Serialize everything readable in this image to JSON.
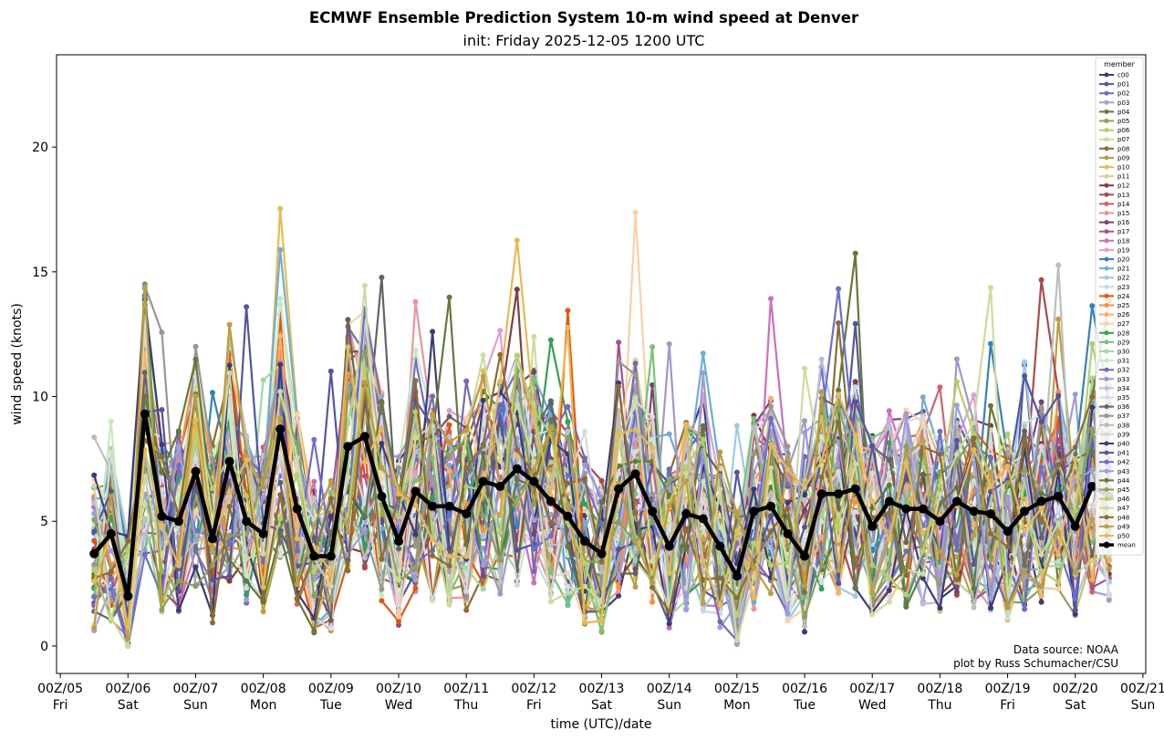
{
  "chart_data": {
    "type": "line",
    "title": "ECMWF Ensemble Prediction System 10-m wind speed at Denver",
    "subtitle": "init: Friday 2025-12-05 1200 UTC",
    "xlabel": "time (UTC)/date",
    "ylabel": "wind speed (knots)",
    "ylim": [
      -1.1,
      23.7
    ],
    "yticks": [
      0,
      5,
      10,
      15,
      20
    ],
    "xticks": [
      {
        "line1": "00Z/05",
        "line2": "Fri"
      },
      {
        "line1": "00Z/06",
        "line2": "Sat"
      },
      {
        "line1": "00Z/07",
        "line2": "Sun"
      },
      {
        "line1": "00Z/08",
        "line2": "Mon"
      },
      {
        "line1": "00Z/09",
        "line2": "Tue"
      },
      {
        "line1": "00Z/10",
        "line2": "Wed"
      },
      {
        "line1": "00Z/11",
        "line2": "Thu"
      },
      {
        "line1": "00Z/12",
        "line2": "Fri"
      },
      {
        "line1": "00Z/13",
        "line2": "Sat"
      },
      {
        "line1": "00Z/14",
        "line2": "Sun"
      },
      {
        "line1": "00Z/15",
        "line2": "Mon"
      },
      {
        "line1": "00Z/16",
        "line2": "Tue"
      },
      {
        "line1": "00Z/17",
        "line2": "Wed"
      },
      {
        "line1": "00Z/18",
        "line2": "Thu"
      },
      {
        "line1": "00Z/19",
        "line2": "Fri"
      },
      {
        "line1": "00Z/20",
        "line2": "Sat"
      },
      {
        "line1": "00Z/21",
        "line2": "Sun"
      }
    ],
    "x": [
      "2025-12-05 12Z",
      "2025-12-05 18Z",
      "2025-12-06 00Z",
      "2025-12-06 06Z",
      "2025-12-06 12Z",
      "2025-12-06 18Z",
      "2025-12-07 00Z",
      "2025-12-07 06Z",
      "2025-12-07 12Z",
      "2025-12-07 18Z",
      "2025-12-08 00Z",
      "2025-12-08 06Z",
      "2025-12-08 12Z",
      "2025-12-08 18Z",
      "2025-12-09 00Z",
      "2025-12-09 06Z",
      "2025-12-09 12Z",
      "2025-12-09 18Z",
      "2025-12-10 00Z",
      "2025-12-10 06Z",
      "2025-12-10 12Z",
      "2025-12-10 18Z",
      "2025-12-11 00Z",
      "2025-12-11 06Z",
      "2025-12-11 12Z",
      "2025-12-11 18Z",
      "2025-12-12 00Z",
      "2025-12-12 06Z",
      "2025-12-12 12Z",
      "2025-12-12 18Z",
      "2025-12-13 00Z",
      "2025-12-13 06Z",
      "2025-12-13 12Z",
      "2025-12-13 18Z",
      "2025-12-14 00Z",
      "2025-12-14 06Z",
      "2025-12-14 12Z",
      "2025-12-14 18Z",
      "2025-12-15 00Z",
      "2025-12-15 06Z",
      "2025-12-15 12Z",
      "2025-12-15 18Z",
      "2025-12-16 00Z",
      "2025-12-16 06Z",
      "2025-12-16 12Z",
      "2025-12-16 18Z",
      "2025-12-17 00Z",
      "2025-12-17 06Z",
      "2025-12-17 12Z",
      "2025-12-17 18Z",
      "2025-12-18 00Z",
      "2025-12-18 06Z",
      "2025-12-18 12Z",
      "2025-12-18 18Z",
      "2025-12-19 00Z",
      "2025-12-19 06Z",
      "2025-12-19 12Z",
      "2025-12-19 18Z",
      "2025-12-20 00Z",
      "2025-12-20 06Z",
      "2025-12-20 12Z"
    ],
    "mean": [
      3.7,
      4.5,
      2.0,
      9.3,
      5.2,
      5.0,
      7.0,
      4.3,
      7.4,
      5.0,
      4.5,
      8.7,
      5.5,
      3.6,
      3.6,
      8.0,
      8.4,
      6.0,
      4.2,
      6.2,
      5.6,
      5.6,
      5.3,
      6.6,
      6.4,
      7.1,
      6.6,
      5.8,
      5.2,
      4.2,
      3.7,
      6.3,
      6.9,
      5.4,
      4.0,
      5.3,
      5.1,
      4.0,
      2.8,
      5.4,
      5.6,
      4.5,
      3.6,
      6.1,
      6.1,
      6.3,
      4.8,
      5.8,
      5.5,
      5.5,
      5.0,
      5.8,
      5.4,
      5.3,
      4.6,
      5.4,
      5.8,
      6.0,
      4.8,
      6.4,
      6.0
    ],
    "series_colors": {
      "c00": "#393b79",
      "p01": "#5254a3",
      "p02": "#6b6ecf",
      "p03": "#9c9ede",
      "p04": "#637939",
      "p05": "#8ca252",
      "p06": "#b5cf6b",
      "p07": "#cedb9c",
      "p08": "#8c6d31",
      "p09": "#bd9e39",
      "p10": "#e7ba52",
      "p11": "#e7cb94",
      "p12": "#843c39",
      "p13": "#ad494a",
      "p14": "#d6616b",
      "p15": "#e7969c",
      "p16": "#7b4173",
      "p17": "#a55194",
      "p18": "#ce6dbd",
      "p19": "#de9ed6",
      "p20": "#3182bd",
      "p21": "#6baed6",
      "p22": "#9ecae1",
      "p23": "#c6dbef",
      "p24": "#e6550d",
      "p25": "#fd8d3c",
      "p26": "#fdae6b",
      "p27": "#fdd0a2",
      "p28": "#31a354",
      "p29": "#74c476",
      "p30": "#a1d99b",
      "p31": "#c7e9c0",
      "p32": "#756bb1",
      "p33": "#9e9ac8",
      "p34": "#bcbddc",
      "p35": "#dadaeb",
      "p36": "#636363",
      "p37": "#969696",
      "p38": "#bdbdbd",
      "p39": "#d9d9d9",
      "p40": "#393b79",
      "p41": "#5254a3",
      "p42": "#6b6ecf",
      "p43": "#9c9ede",
      "p44": "#637939",
      "p45": "#8ca252",
      "p46": "#b5cf6b",
      "p47": "#cedb9c",
      "p48": "#8c6d31",
      "p49": "#bd9e39",
      "p50": "#e7ba52",
      "mean": "#000000"
    },
    "legend": {
      "title": "member",
      "entries": [
        "c00",
        "p01",
        "p02",
        "p03",
        "p04",
        "p05",
        "p06",
        "p07",
        "p08",
        "p09",
        "p10",
        "p11",
        "p12",
        "p13",
        "p14",
        "p15",
        "p16",
        "p17",
        "p18",
        "p19",
        "p20",
        "p21",
        "p22",
        "p23",
        "p24",
        "p25",
        "p26",
        "p27",
        "p28",
        "p29",
        "p30",
        "p31",
        "p32",
        "p33",
        "p34",
        "p35",
        "p36",
        "p37",
        "p38",
        "p39",
        "p40",
        "p41",
        "p42",
        "p43",
        "p44",
        "p45",
        "p46",
        "p47",
        "p48",
        "p49",
        "p50",
        "mean"
      ],
      "placement": "right"
    },
    "note_line1": "Data source: NOAA",
    "note_line2": "plot by Russ Schumacher/CSU",
    "grid": false
  }
}
